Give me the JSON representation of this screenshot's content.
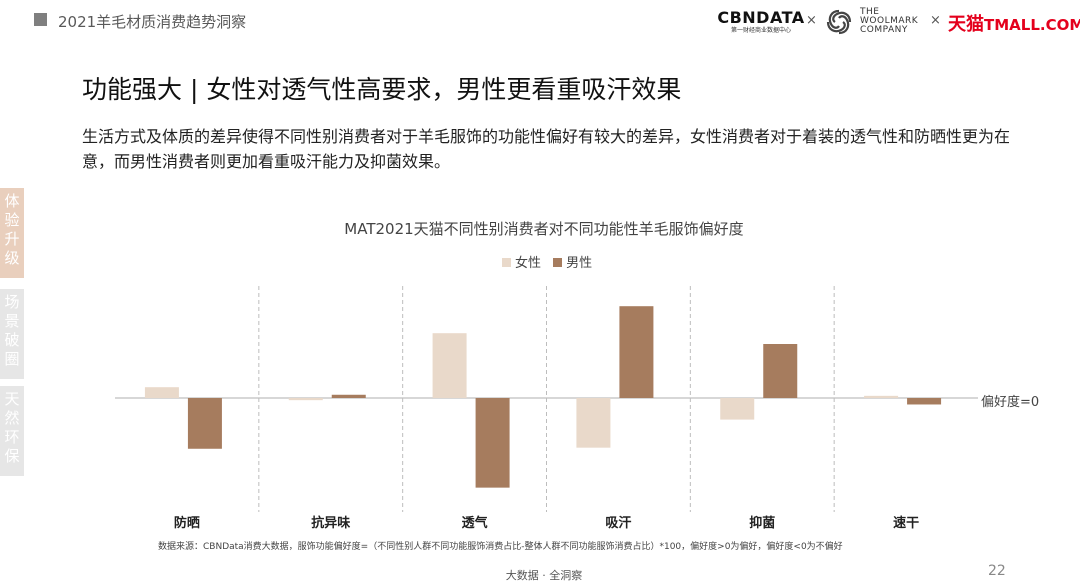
{
  "header": {
    "report_title": "2021羊毛材质消费趋势洞察",
    "logos": {
      "cbndata": "CBNDATA",
      "cbndata_sub": "第一财经商业数据中心",
      "times": "×",
      "woolmark_lines": [
        "THE",
        "WOOLMARK",
        "COMPANY"
      ],
      "tmall_cn": "天猫",
      "tmall_en": "TMALL.COM"
    }
  },
  "page_title": "功能强大 | 女性对透气性高要求，男性更看重吸汗效果",
  "summary": "生活方式及体质的差异使得不同性别消费者对于羊毛服饰的功能性偏好有较大的差异，女性消费者对于着装的透气性和防晒性更为在意，而男性消费者则更加看重吸汗能力及抑菌效果。",
  "side_tabs": [
    {
      "label": "体验升级",
      "active": true
    },
    {
      "label": "场景破圈",
      "active": false
    },
    {
      "label": "天然环保",
      "active": false
    }
  ],
  "chart_data": {
    "type": "bar",
    "title": "MAT2021天猫不同性别消费者对不同功能性羊毛服饰偏好度",
    "categories": [
      "防晒",
      "抗异味",
      "透气",
      "吸汗",
      "抑菌",
      "速干"
    ],
    "series": [
      {
        "name": "女性",
        "color": "#e9d9ca",
        "values": [
          10,
          -2,
          60,
          -46,
          -20,
          2
        ]
      },
      {
        "name": "男性",
        "color": "#a67c5e",
        "values": [
          -47,
          3,
          -83,
          85,
          50,
          -6
        ]
      }
    ],
    "reference_label": "偏好度=0",
    "ylim": [
      -100,
      100
    ],
    "grid": false,
    "legend_position": "top-center"
  },
  "source_note": "数据来源：CBNData消费大数据，服饰功能偏好度=（不同性别人群不同功能服饰消费占比-整体人群不同功能服饰消费占比）*100，偏好度>0为偏好，偏好度<0为不偏好",
  "footer": {
    "slogan": "大数据 · 全洞察",
    "page_number": "22"
  }
}
